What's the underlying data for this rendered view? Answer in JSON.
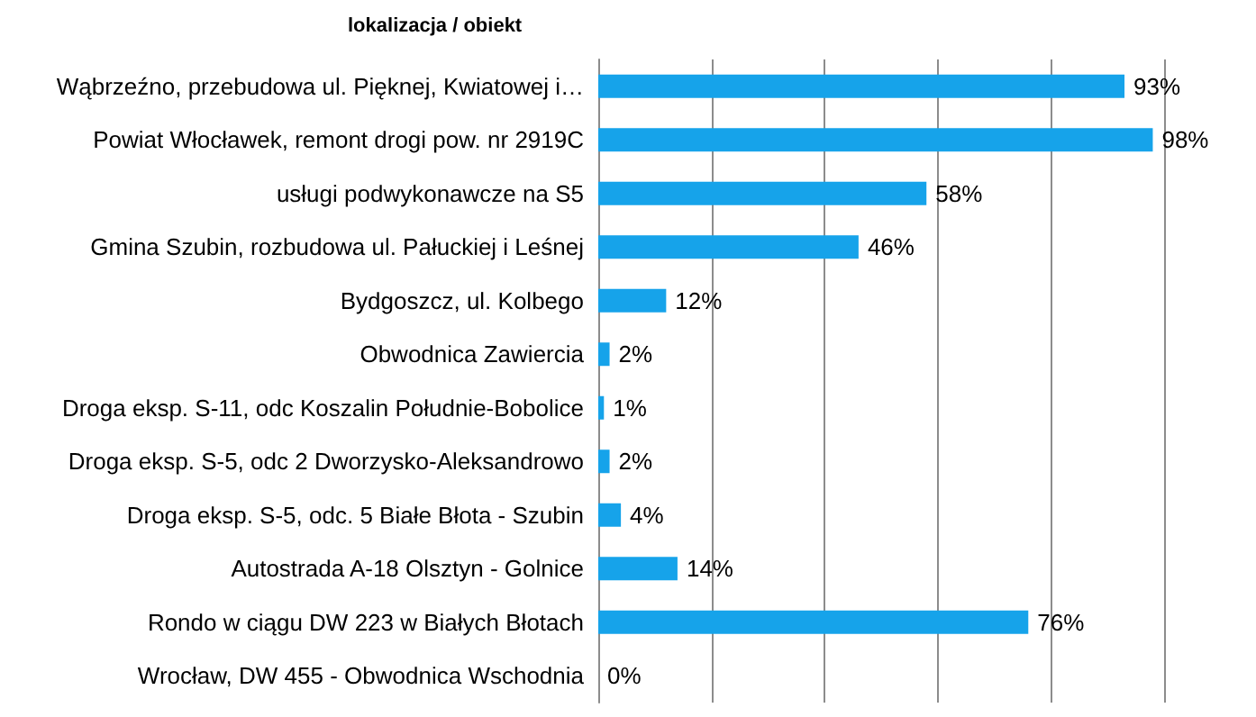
{
  "chart_data": {
    "type": "bar",
    "orientation": "horizontal",
    "title": "lokalizacja / obiekt",
    "categories": [
      "Wąbrzeźno, przebudowa ul. Pięknej, Kwiatowej i…",
      "Powiat Włocławek, remont drogi pow. nr 2919C",
      "usługi podwykonawcze na S5",
      "Gmina Szubin, rozbudowa ul. Pałuckiej i Leśnej",
      "Bydgoszcz, ul. Kolbego",
      "Obwodnica Zawiercia",
      "Droga eksp. S-11, odc Koszalin Południe-Bobolice",
      "Droga eksp. S-5, odc 2 Dworzysko-Aleksandrowo",
      "Droga eksp. S-5, odc. 5 Białe Błota - Szubin",
      "Autostrada A-18 Olsztyn - Golnice",
      "Rondo w ciągu DW 223 w Białych Błotach",
      "Wrocław, DW 455 - Obwodnica Wschodnia"
    ],
    "values": [
      93,
      98,
      58,
      46,
      12,
      2,
      1,
      2,
      4,
      14,
      76,
      0
    ],
    "value_labels": [
      "93%",
      "98%",
      "58%",
      "46%",
      "12%",
      "2%",
      "1%",
      "2%",
      "4%",
      "14%",
      "76%",
      "0%"
    ],
    "color": "#16a3ea",
    "xlim": [
      0,
      100
    ],
    "xticks": [
      {
        "value": 0,
        "label": null
      },
      {
        "value": 20,
        "label": null
      },
      {
        "value": 40,
        "label": null
      },
      {
        "value": 60,
        "label": null
      },
      {
        "value": 80,
        "label": null
      },
      {
        "value": 100,
        "label": null
      }
    ],
    "grid": "x",
    "tick_labels": "y"
  }
}
